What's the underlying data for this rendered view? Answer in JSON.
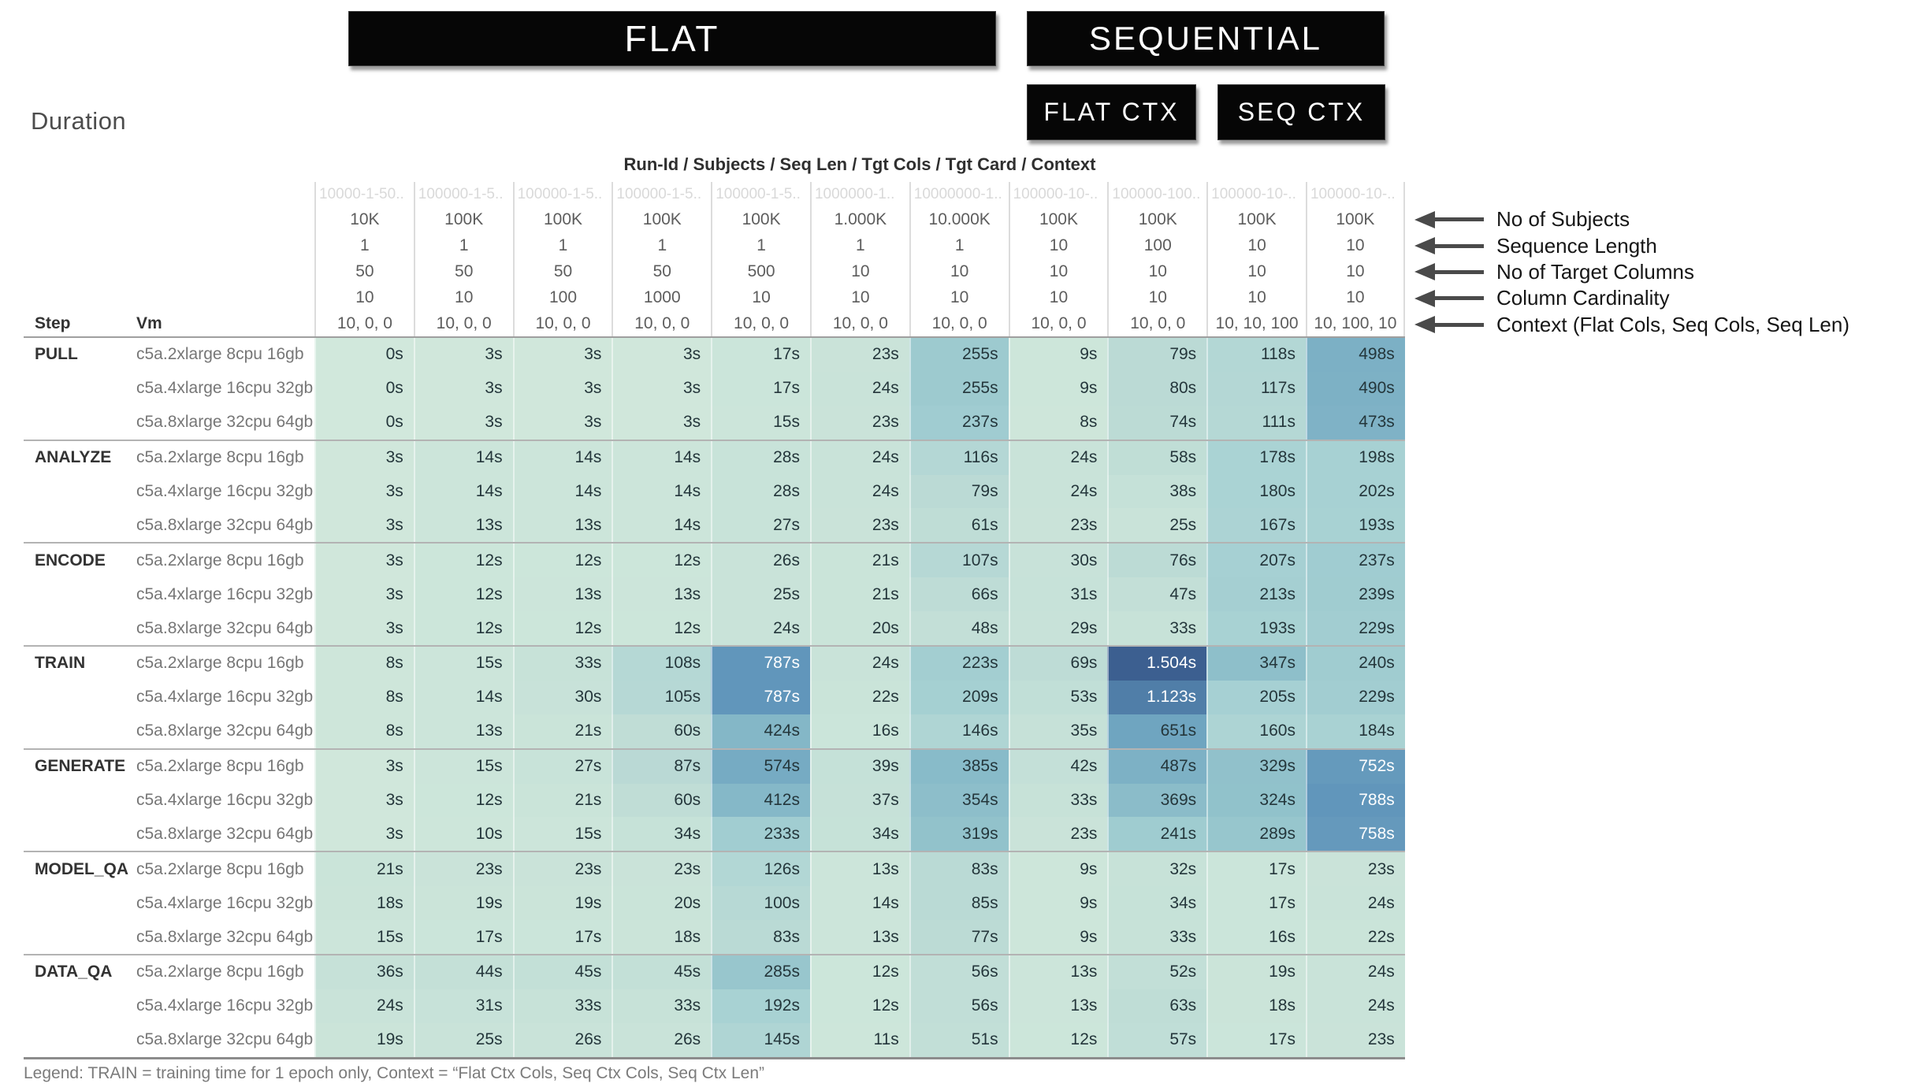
{
  "toolbar": {
    "flat_label": "FLAT",
    "sequential_label": "SEQUENTIAL",
    "flat_ctx_label": "FLAT CTX",
    "seq_ctx_label": "SEQ CTX"
  },
  "title": "Duration",
  "table": {
    "columns_title": "Run-Id / Subjects / Seq Len / Tgt Cols / Tgt Card / Context",
    "row_headers": {
      "step": "Step",
      "vm": "Vm"
    }
  },
  "annotations": [
    "No of Subjects",
    "Sequence Length",
    "No of Target Columns",
    "Column Cardinality",
    "Context (Flat Cols, Seq Cols, Seq Len)"
  ],
  "legend": "Legend: TRAIN = training time for 1 epoch only, Context = “Flat Ctx Cols, Seq Ctx Cols, Seq Ctx Len”",
  "chart_data": {
    "type": "heatmap",
    "title": "Duration",
    "unit": "seconds",
    "x_header_title": "Run-Id / Subjects / Seq Len / Tgt Cols / Tgt Card / Context",
    "columns": [
      {
        "run_id": "10000-1-50..",
        "subjects": "10K",
        "seq_len": "1",
        "tgt_cols": "50",
        "tgt_card": "10",
        "context": "10, 0, 0"
      },
      {
        "run_id": "100000-1-5..",
        "subjects": "100K",
        "seq_len": "1",
        "tgt_cols": "50",
        "tgt_card": "10",
        "context": "10, 0, 0"
      },
      {
        "run_id": "100000-1-5..",
        "subjects": "100K",
        "seq_len": "1",
        "tgt_cols": "50",
        "tgt_card": "100",
        "context": "10, 0, 0"
      },
      {
        "run_id": "100000-1-5..",
        "subjects": "100K",
        "seq_len": "1",
        "tgt_cols": "50",
        "tgt_card": "1000",
        "context": "10, 0, 0"
      },
      {
        "run_id": "100000-1-5..",
        "subjects": "100K",
        "seq_len": "1",
        "tgt_cols": "500",
        "tgt_card": "10",
        "context": "10, 0, 0"
      },
      {
        "run_id": "1000000-1..",
        "subjects": "1.000K",
        "seq_len": "1",
        "tgt_cols": "10",
        "tgt_card": "10",
        "context": "10, 0, 0"
      },
      {
        "run_id": "10000000-1..",
        "subjects": "10.000K",
        "seq_len": "1",
        "tgt_cols": "10",
        "tgt_card": "10",
        "context": "10, 0, 0"
      },
      {
        "run_id": "100000-10-..",
        "subjects": "100K",
        "seq_len": "10",
        "tgt_cols": "10",
        "tgt_card": "10",
        "context": "10, 0, 0"
      },
      {
        "run_id": "100000-100..",
        "subjects": "100K",
        "seq_len": "100",
        "tgt_cols": "10",
        "tgt_card": "10",
        "context": "10, 0, 0"
      },
      {
        "run_id": "100000-10-..",
        "subjects": "100K",
        "seq_len": "10",
        "tgt_cols": "10",
        "tgt_card": "10",
        "context": "10, 10, 100"
      },
      {
        "run_id": "100000-10-..",
        "subjects": "100K",
        "seq_len": "10",
        "tgt_cols": "10",
        "tgt_card": "10",
        "context": "10, 100, 10"
      }
    ],
    "groups": [
      {
        "step": "PULL",
        "rows": [
          {
            "vm": "c5a.2xlarge 8cpu 16gb",
            "values": [
              0,
              3,
              3,
              3,
              17,
              23,
              255,
              9,
              79,
              118,
              498
            ]
          },
          {
            "vm": "c5a.4xlarge 16cpu 32gb",
            "values": [
              0,
              3,
              3,
              3,
              17,
              24,
              255,
              9,
              80,
              117,
              490
            ]
          },
          {
            "vm": "c5a.8xlarge 32cpu 64gb",
            "values": [
              0,
              3,
              3,
              3,
              15,
              23,
              237,
              8,
              74,
              111,
              473
            ]
          }
        ]
      },
      {
        "step": "ANALYZE",
        "rows": [
          {
            "vm": "c5a.2xlarge 8cpu 16gb",
            "values": [
              3,
              14,
              14,
              14,
              28,
              24,
              116,
              24,
              58,
              178,
              198
            ]
          },
          {
            "vm": "c5a.4xlarge 16cpu 32gb",
            "values": [
              3,
              14,
              14,
              14,
              28,
              24,
              79,
              24,
              38,
              180,
              202
            ]
          },
          {
            "vm": "c5a.8xlarge 32cpu 64gb",
            "values": [
              3,
              13,
              13,
              14,
              27,
              23,
              61,
              23,
              25,
              167,
              193
            ]
          }
        ]
      },
      {
        "step": "ENCODE",
        "rows": [
          {
            "vm": "c5a.2xlarge 8cpu 16gb",
            "values": [
              3,
              12,
              12,
              12,
              26,
              21,
              107,
              30,
              76,
              207,
              237
            ]
          },
          {
            "vm": "c5a.4xlarge 16cpu 32gb",
            "values": [
              3,
              12,
              13,
              13,
              25,
              21,
              66,
              31,
              47,
              213,
              239
            ]
          },
          {
            "vm": "c5a.8xlarge 32cpu 64gb",
            "values": [
              3,
              12,
              12,
              12,
              24,
              20,
              48,
              29,
              33,
              193,
              229
            ]
          }
        ]
      },
      {
        "step": "TRAIN",
        "rows": [
          {
            "vm": "c5a.2xlarge 8cpu 16gb",
            "values": [
              8,
              15,
              33,
              108,
              787,
              24,
              223,
              69,
              1504,
              347,
              240
            ]
          },
          {
            "vm": "c5a.4xlarge 16cpu 32gb",
            "values": [
              8,
              14,
              30,
              105,
              787,
              22,
              209,
              53,
              1123,
              205,
              229
            ]
          },
          {
            "vm": "c5a.8xlarge 32cpu 64gb",
            "values": [
              8,
              13,
              21,
              60,
              424,
              16,
              146,
              35,
              651,
              160,
              184
            ]
          }
        ]
      },
      {
        "step": "GENERATE",
        "rows": [
          {
            "vm": "c5a.2xlarge 8cpu 16gb",
            "values": [
              3,
              15,
              27,
              87,
              574,
              39,
              385,
              42,
              487,
              329,
              752
            ]
          },
          {
            "vm": "c5a.4xlarge 16cpu 32gb",
            "values": [
              3,
              12,
              21,
              60,
              412,
              37,
              354,
              33,
              369,
              324,
              788
            ]
          },
          {
            "vm": "c5a.8xlarge 32cpu 64gb",
            "values": [
              3,
              10,
              15,
              34,
              233,
              34,
              319,
              23,
              241,
              289,
              758
            ]
          }
        ]
      },
      {
        "step": "MODEL_QA",
        "rows": [
          {
            "vm": "c5a.2xlarge 8cpu 16gb",
            "values": [
              21,
              23,
              23,
              23,
              126,
              13,
              83,
              9,
              32,
              17,
              23
            ]
          },
          {
            "vm": "c5a.4xlarge 16cpu 32gb",
            "values": [
              18,
              19,
              19,
              20,
              100,
              14,
              85,
              9,
              34,
              17,
              24
            ]
          },
          {
            "vm": "c5a.8xlarge 32cpu 64gb",
            "values": [
              15,
              17,
              17,
              18,
              83,
              13,
              77,
              9,
              33,
              16,
              22
            ]
          }
        ]
      },
      {
        "step": "DATA_QA",
        "rows": [
          {
            "vm": "c5a.2xlarge 8cpu 16gb",
            "values": [
              36,
              44,
              45,
              45,
              285,
              12,
              56,
              13,
              52,
              19,
              24
            ]
          },
          {
            "vm": "c5a.4xlarge 16cpu 32gb",
            "values": [
              24,
              31,
              33,
              33,
              192,
              12,
              56,
              13,
              63,
              18,
              24
            ]
          },
          {
            "vm": "c5a.8xlarge 32cpu 64gb",
            "values": [
              19,
              25,
              26,
              26,
              145,
              11,
              51,
              12,
              57,
              17,
              23
            ]
          }
        ]
      }
    ],
    "value_suffix": "s",
    "color_scale": {
      "stops": [
        [
          0,
          "#d1e8dc"
        ],
        [
          10,
          "#cde6da"
        ],
        [
          25,
          "#c9e3d9"
        ],
        [
          50,
          "#c2dfd7"
        ],
        [
          80,
          "#bbdad5"
        ],
        [
          120,
          "#b3d7d5"
        ],
        [
          160,
          "#add4d4"
        ],
        [
          200,
          "#a7d1d3"
        ],
        [
          260,
          "#9cc9cf"
        ],
        [
          320,
          "#92c2cb"
        ],
        [
          400,
          "#86b9c8"
        ],
        [
          500,
          "#7cb0c5"
        ],
        [
          600,
          "#74a9c2"
        ],
        [
          700,
          "#6ba1bf"
        ],
        [
          800,
          "#6094ba"
        ],
        [
          1000,
          "#5685ae"
        ],
        [
          1200,
          "#4d79a4"
        ],
        [
          1504,
          "#3c5f90"
        ]
      ],
      "text_dark": "#24363b",
      "text_light": "#ffffff",
      "light_text_threshold": 700
    }
  }
}
